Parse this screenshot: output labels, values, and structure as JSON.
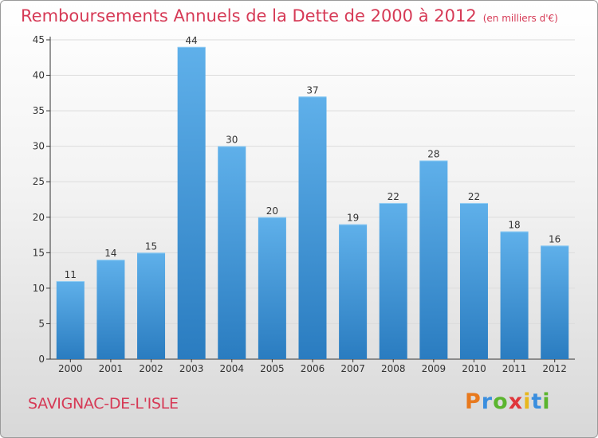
{
  "header": {
    "title": "Remboursements Annuels de la Dette de 2000 à 2012",
    "unit_note": "(en milliers d'€)"
  },
  "footer": {
    "commune": "SAVIGNAC-DE-L'ISLE",
    "brand": "Proxiti"
  },
  "colors": {
    "title": "#d63a56",
    "bar_top": "#5fb0ea",
    "bar_bottom": "#2a7cc0",
    "grid": "#dcdcdc",
    "brand_letters": [
      "#e8791d",
      "#3a8ede",
      "#5bb52e",
      "#e0363b",
      "#e8b71d",
      "#3a8ede",
      "#5bb52e"
    ]
  },
  "chart_data": {
    "type": "bar",
    "categories": [
      "2000",
      "2001",
      "2002",
      "2003",
      "2004",
      "2005",
      "2006",
      "2007",
      "2008",
      "2009",
      "2010",
      "2011",
      "2012"
    ],
    "values": [
      11,
      14,
      15,
      44,
      30,
      20,
      37,
      19,
      22,
      28,
      22,
      18,
      16
    ],
    "title": "Remboursements Annuels de la Dette de 2000 à 2012",
    "ylim": [
      0,
      45
    ],
    "yticks": [
      0,
      5,
      10,
      15,
      20,
      25,
      30,
      35,
      40,
      45
    ],
    "grid": true,
    "data_labels": true
  }
}
